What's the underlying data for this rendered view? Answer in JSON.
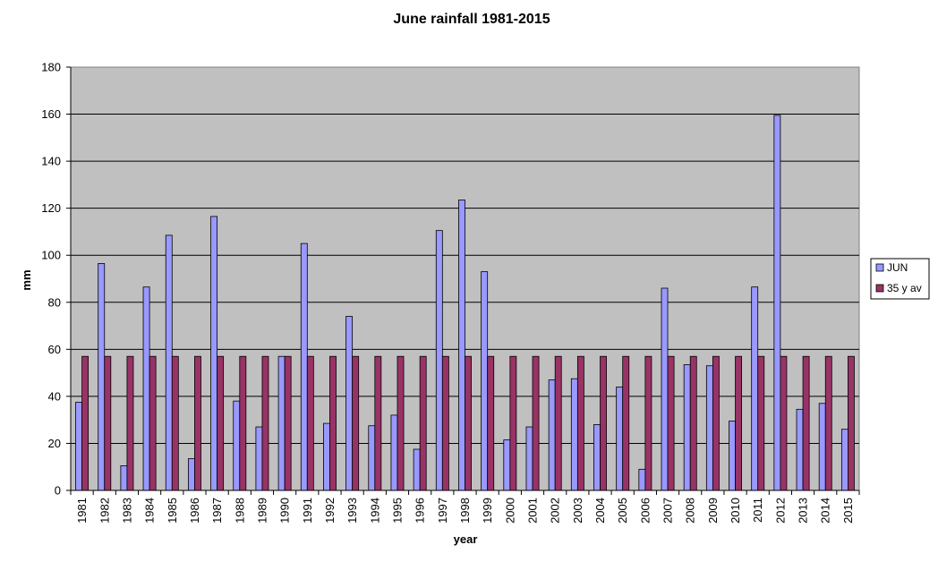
{
  "chart_data": {
    "type": "bar",
    "title": "June rainfall 1981-2015",
    "xlabel": "year",
    "ylabel": "mm",
    "ylim": [
      0,
      180
    ],
    "yticks": [
      0,
      20,
      40,
      60,
      80,
      100,
      120,
      140,
      160,
      180
    ],
    "grid": true,
    "legend_position": "right",
    "plot_background": "#c0c0c0",
    "categories": [
      "1981",
      "1982",
      "1983",
      "1984",
      "1985",
      "1986",
      "1987",
      "1988",
      "1989",
      "1990",
      "1991",
      "1992",
      "1993",
      "1994",
      "1995",
      "1996",
      "1997",
      "1998",
      "1999",
      "2000",
      "2001",
      "2002",
      "2003",
      "2004",
      "2005",
      "2006",
      "2007",
      "2008",
      "2009",
      "2010",
      "2011",
      "2012",
      "2013",
      "2014",
      "2015"
    ],
    "series": [
      {
        "name": "JUN",
        "color": "#9999ff",
        "values": [
          37.5,
          96.5,
          10.5,
          86.5,
          108.5,
          13.5,
          116.5,
          38,
          27,
          57,
          105,
          28.5,
          74,
          27.5,
          32,
          17.5,
          110.5,
          123.5,
          93,
          21.5,
          27,
          47,
          47.5,
          28,
          44,
          9,
          86,
          53.5,
          53,
          29.5,
          86.5,
          159.5,
          34.5,
          37,
          26
        ]
      },
      {
        "name": "35 y av",
        "color": "#993366",
        "values": [
          57,
          57,
          57,
          57,
          57,
          57,
          57,
          57,
          57,
          57,
          57,
          57,
          57,
          57,
          57,
          57,
          57,
          57,
          57,
          57,
          57,
          57,
          57,
          57,
          57,
          57,
          57,
          57,
          57,
          57,
          57,
          57,
          57,
          57,
          57
        ]
      }
    ]
  }
}
